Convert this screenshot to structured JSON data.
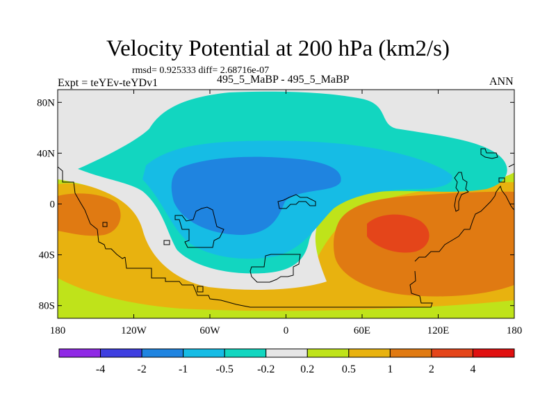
{
  "header": {
    "title": "Velocity Potential at 200 hPa (km2/s)",
    "stats": "rmsd= 0.925333 diff= 2.68716e-07",
    "left_label": "Expt = teYEv-teYDv1",
    "center_label": "495_5_MaBP - 495_5_MaBP",
    "right_label": "ANN"
  },
  "chart_data": {
    "type": "heatmap",
    "title": "Velocity Potential at 200 hPa (km2/s)",
    "variable": "velocity potential difference",
    "units": "km2/s",
    "x_axis": {
      "range": [
        -180,
        180
      ],
      "ticks": [
        {
          "value": -180,
          "label": "180"
        },
        {
          "value": -120,
          "label": "120W"
        },
        {
          "value": -60,
          "label": "60W"
        },
        {
          "value": 0,
          "label": "0"
        },
        {
          "value": 60,
          "label": "60E"
        },
        {
          "value": 120,
          "label": "120E"
        },
        {
          "value": 180,
          "label": "180"
        }
      ]
    },
    "y_axis": {
      "range": [
        -90,
        90
      ],
      "ticks": [
        {
          "value": 80,
          "label": "80N"
        },
        {
          "value": 40,
          "label": "40N"
        },
        {
          "value": 0,
          "label": "0"
        },
        {
          "value": -40,
          "label": "40S"
        },
        {
          "value": -80,
          "label": "80S"
        }
      ]
    },
    "colorbar": {
      "labels": [
        "-4",
        "-2",
        "-1",
        "-0.5",
        "-0.2",
        "0.2",
        "0.5",
        "1",
        "2",
        "4"
      ],
      "colors": [
        "#8f29e5",
        "#3e3ee0",
        "#1f84e0",
        "#16bce5",
        "#12d6c0",
        "#e6e6e6",
        "#bfe31a",
        "#e8b20f",
        "#e07a12",
        "#e4451a",
        "#e01010"
      ]
    },
    "fields": [
      {
        "name": "weak-positive-background",
        "level": "0.2 to 0.5",
        "color": "#bfe31a"
      },
      {
        "name": "moderate-positive-south",
        "level": "0.5 to 1",
        "color": "#e8b20f"
      },
      {
        "name": "near-zero-band",
        "level": "-0.2 to 0.2",
        "color": "#e6e6e6"
      },
      {
        "name": "negative-north-envelope",
        "level": "-0.5 to -0.2",
        "color": "#12d6c0"
      },
      {
        "name": "negative-inner",
        "level": "-1 to -0.5",
        "color": "#16bce5"
      },
      {
        "name": "negative-core-pacific",
        "level": "-2 to -1",
        "color": "#1f84e0"
      },
      {
        "name": "positive-west-pacific-lobe",
        "level": "1 to 2",
        "color": "#e07a12"
      },
      {
        "name": "positive-indian-ocean-lobe",
        "level": "1 to 2",
        "color": "#e07a12"
      },
      {
        "name": "positive-indian-ocean-max",
        "level": "2 to 4",
        "color": "#e4451a"
      }
    ]
  }
}
